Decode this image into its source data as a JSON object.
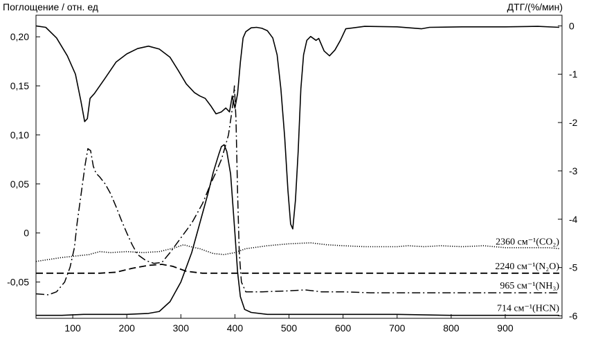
{
  "chart_data": {
    "type": "line",
    "y_left_label": "Поглощение / отн. ед",
    "y_right_label": "ДТГ/(%/мин)",
    "x_ticks": [
      100,
      200,
      300,
      400,
      500,
      600,
      700,
      800,
      900
    ],
    "x_tick_labels": [
      "100",
      "200",
      "300",
      "400",
      "500",
      "600",
      "700",
      "800",
      "900"
    ],
    "y_left_ticks": [
      0.2,
      0.15,
      0.1,
      0.05,
      0.0,
      -0.05
    ],
    "y_left_tick_labels": [
      "0,20",
      "0,15",
      "0,10",
      "0,05",
      "0",
      "-0,05"
    ],
    "y_right_ticks": [
      0,
      -1,
      -2,
      -3,
      -4,
      -5,
      -6
    ],
    "y_right_tick_labels": [
      "0",
      "-1",
      "-2",
      "-3",
      "-4",
      "-5",
      "-6"
    ],
    "xlim": [
      32,
      1005
    ],
    "ylim_left": [
      -0.087,
      0.222
    ],
    "ylim_right": [
      -6.05,
      0.22
    ],
    "grid": false,
    "series": [
      {
        "key": "dtg",
        "axis": "right",
        "style": "solid",
        "points": [
          [
            32,
            0.0
          ],
          [
            50,
            -0.03
          ],
          [
            70,
            -0.25
          ],
          [
            90,
            -0.62
          ],
          [
            105,
            -1.0
          ],
          [
            115,
            -1.55
          ],
          [
            122,
            -1.98
          ],
          [
            127,
            -1.92
          ],
          [
            132,
            -1.5
          ],
          [
            140,
            -1.4
          ],
          [
            160,
            -1.08
          ],
          [
            180,
            -0.75
          ],
          [
            200,
            -0.58
          ],
          [
            220,
            -0.47
          ],
          [
            240,
            -0.42
          ],
          [
            260,
            -0.48
          ],
          [
            280,
            -0.65
          ],
          [
            295,
            -0.92
          ],
          [
            310,
            -1.2
          ],
          [
            325,
            -1.38
          ],
          [
            335,
            -1.45
          ],
          [
            345,
            -1.5
          ],
          [
            355,
            -1.65
          ],
          [
            365,
            -1.82
          ],
          [
            375,
            -1.78
          ],
          [
            383,
            -1.7
          ],
          [
            390,
            -1.78
          ],
          [
            395,
            -1.45
          ],
          [
            400,
            -1.7
          ],
          [
            405,
            -1.4
          ],
          [
            410,
            -0.75
          ],
          [
            415,
            -0.25
          ],
          [
            420,
            -0.12
          ],
          [
            430,
            -0.04
          ],
          [
            440,
            -0.03
          ],
          [
            450,
            -0.05
          ],
          [
            460,
            -0.1
          ],
          [
            470,
            -0.25
          ],
          [
            478,
            -0.6
          ],
          [
            485,
            -1.3
          ],
          [
            492,
            -2.3
          ],
          [
            498,
            -3.4
          ],
          [
            503,
            -4.1
          ],
          [
            507,
            -4.2
          ],
          [
            512,
            -3.6
          ],
          [
            517,
            -2.6
          ],
          [
            522,
            -1.3
          ],
          [
            527,
            -0.6
          ],
          [
            533,
            -0.3
          ],
          [
            540,
            -0.22
          ],
          [
            550,
            -0.3
          ],
          [
            555,
            -0.26
          ],
          [
            565,
            -0.52
          ],
          [
            575,
            -0.62
          ],
          [
            585,
            -0.5
          ],
          [
            595,
            -0.3
          ],
          [
            605,
            -0.06
          ],
          [
            640,
            -0.01
          ],
          [
            700,
            -0.02
          ],
          [
            745,
            -0.06
          ],
          [
            760,
            -0.03
          ],
          [
            820,
            -0.02
          ],
          [
            900,
            -0.02
          ],
          [
            960,
            -0.01
          ],
          [
            1000,
            -0.03
          ]
        ]
      },
      {
        "key": "co2",
        "axis": "left",
        "style": "dotted",
        "annotation": "2360 см⁻¹(CO₂)",
        "points": [
          [
            32,
            -0.029
          ],
          [
            80,
            -0.025
          ],
          [
            130,
            -0.022
          ],
          [
            150,
            -0.019
          ],
          [
            170,
            -0.02
          ],
          [
            200,
            -0.019
          ],
          [
            230,
            -0.02
          ],
          [
            260,
            -0.019
          ],
          [
            290,
            -0.015
          ],
          [
            305,
            -0.012
          ],
          [
            318,
            -0.014
          ],
          [
            335,
            -0.016
          ],
          [
            360,
            -0.021
          ],
          [
            380,
            -0.022
          ],
          [
            400,
            -0.02
          ],
          [
            420,
            -0.016
          ],
          [
            460,
            -0.013
          ],
          [
            500,
            -0.011
          ],
          [
            540,
            -0.01
          ],
          [
            570,
            -0.012
          ],
          [
            600,
            -0.013
          ],
          [
            640,
            -0.014
          ],
          [
            670,
            -0.014
          ],
          [
            700,
            -0.014
          ],
          [
            720,
            -0.013
          ],
          [
            750,
            -0.014
          ],
          [
            780,
            -0.013
          ],
          [
            820,
            -0.014
          ],
          [
            860,
            -0.013
          ],
          [
            900,
            -0.015
          ],
          [
            940,
            -0.015
          ],
          [
            980,
            -0.015
          ],
          [
            1000,
            -0.016
          ]
        ]
      },
      {
        "key": "n2o",
        "axis": "left",
        "style": "dashed",
        "annotation": "2240 см⁻¹(N₂O)",
        "points": [
          [
            32,
            -0.041
          ],
          [
            100,
            -0.041
          ],
          [
            150,
            -0.041
          ],
          [
            180,
            -0.04
          ],
          [
            210,
            -0.036
          ],
          [
            240,
            -0.033
          ],
          [
            265,
            -0.032
          ],
          [
            285,
            -0.034
          ],
          [
            310,
            -0.039
          ],
          [
            340,
            -0.041
          ],
          [
            1000,
            -0.041
          ]
        ]
      },
      {
        "key": "nh3",
        "axis": "left",
        "style": "dashdot",
        "annotation": "965 см⁻¹(NH₃)",
        "points": [
          [
            32,
            -0.062
          ],
          [
            55,
            -0.063
          ],
          [
            70,
            -0.06
          ],
          [
            85,
            -0.05
          ],
          [
            95,
            -0.035
          ],
          [
            103,
            -0.015
          ],
          [
            108,
            0.01
          ],
          [
            113,
            0.03
          ],
          [
            118,
            0.05
          ],
          [
            123,
            0.07
          ],
          [
            128,
            0.086
          ],
          [
            133,
            0.084
          ],
          [
            138,
            0.068
          ],
          [
            143,
            0.061
          ],
          [
            150,
            0.057
          ],
          [
            160,
            0.05
          ],
          [
            170,
            0.04
          ],
          [
            180,
            0.027
          ],
          [
            190,
            0.013
          ],
          [
            200,
            0.0
          ],
          [
            210,
            -0.012
          ],
          [
            220,
            -0.022
          ],
          [
            235,
            -0.028
          ],
          [
            250,
            -0.031
          ],
          [
            265,
            -0.03
          ],
          [
            280,
            -0.02
          ],
          [
            300,
            -0.005
          ],
          [
            320,
            0.01
          ],
          [
            340,
            0.03
          ],
          [
            355,
            0.05
          ],
          [
            365,
            0.062
          ],
          [
            375,
            0.075
          ],
          [
            382,
            0.088
          ],
          [
            388,
            0.1
          ],
          [
            392,
            0.115
          ],
          [
            396,
            0.13
          ],
          [
            399,
            0.15
          ],
          [
            402,
            0.115
          ],
          [
            405,
            0.04
          ],
          [
            408,
            -0.02
          ],
          [
            412,
            -0.05
          ],
          [
            420,
            -0.06
          ],
          [
            450,
            -0.06
          ],
          [
            500,
            -0.059
          ],
          [
            530,
            -0.058
          ],
          [
            560,
            -0.06
          ],
          [
            600,
            -0.06
          ],
          [
            650,
            -0.061
          ],
          [
            700,
            -0.061
          ],
          [
            750,
            -0.061
          ],
          [
            800,
            -0.061
          ],
          [
            900,
            -0.061
          ],
          [
            1000,
            -0.061
          ]
        ]
      },
      {
        "key": "hcn",
        "axis": "left",
        "style": "solid",
        "annotation": "714 см⁻¹(HCN)",
        "points": [
          [
            32,
            -0.084
          ],
          [
            80,
            -0.084
          ],
          [
            120,
            -0.083
          ],
          [
            160,
            -0.083
          ],
          [
            200,
            -0.083
          ],
          [
            240,
            -0.082
          ],
          [
            260,
            -0.08
          ],
          [
            280,
            -0.07
          ],
          [
            300,
            -0.05
          ],
          [
            320,
            -0.02
          ],
          [
            335,
            0.01
          ],
          [
            350,
            0.04
          ],
          [
            360,
            0.062
          ],
          [
            370,
            0.08
          ],
          [
            375,
            0.088
          ],
          [
            380,
            0.09
          ],
          [
            385,
            0.083
          ],
          [
            392,
            0.06
          ],
          [
            400,
            0.0
          ],
          [
            405,
            -0.04
          ],
          [
            410,
            -0.065
          ],
          [
            418,
            -0.078
          ],
          [
            430,
            -0.081
          ],
          [
            460,
            -0.083
          ],
          [
            500,
            -0.083
          ],
          [
            600,
            -0.083
          ],
          [
            700,
            -0.083
          ],
          [
            800,
            -0.084
          ],
          [
            900,
            -0.084
          ],
          [
            1000,
            -0.084
          ]
        ]
      }
    ]
  }
}
